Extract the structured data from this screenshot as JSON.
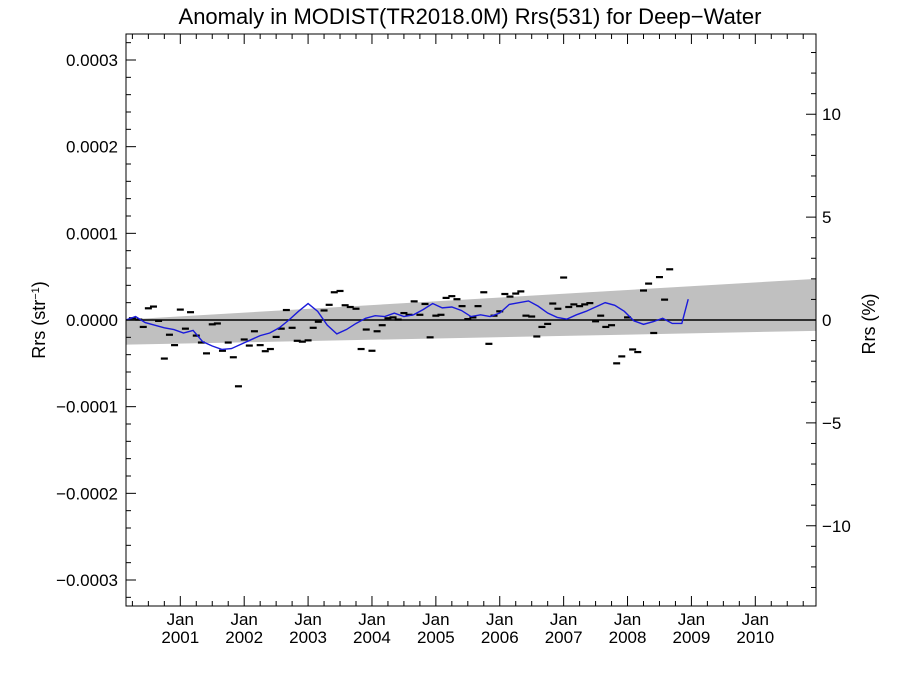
{
  "chart_data": {
    "type": "scatter",
    "title": "Anomaly in MODIST(TR2018.0M) Rrs(531) for Deep−Water",
    "ylabel_left_main": "Rrs (str",
    "ylabel_left_sup": "−1",
    "ylabel_left_close": ")",
    "ylabel_right": "Rrs (%)",
    "xlim": [
      2000.15,
      2010.95
    ],
    "ylim_left": [
      -0.00033,
      0.00033
    ],
    "ylim_right": [
      -13.9,
      13.9
    ],
    "grid": false,
    "x_ticks": [
      {
        "value": 2001.0,
        "top": "Jan",
        "bottom": "2001"
      },
      {
        "value": 2002.0,
        "top": "Jan",
        "bottom": "2002"
      },
      {
        "value": 2003.0,
        "top": "Jan",
        "bottom": "2003"
      },
      {
        "value": 2004.0,
        "top": "Jan",
        "bottom": "2004"
      },
      {
        "value": 2005.0,
        "top": "Jan",
        "bottom": "2005"
      },
      {
        "value": 2006.0,
        "top": "Jan",
        "bottom": "2006"
      },
      {
        "value": 2007.0,
        "top": "Jan",
        "bottom": "2007"
      },
      {
        "value": 2008.0,
        "top": "Jan",
        "bottom": "2008"
      },
      {
        "value": 2009.0,
        "top": "Jan",
        "bottom": "2009"
      },
      {
        "value": 2010.0,
        "top": "Jan",
        "bottom": "2010"
      }
    ],
    "y_ticks_left": [
      {
        "value": 0.0003,
        "label": "0.0003"
      },
      {
        "value": 0.0002,
        "label": "0.0002"
      },
      {
        "value": 0.0001,
        "label": "0.0001"
      },
      {
        "value": 0.0,
        "label": "0.0000"
      },
      {
        "value": -0.0001,
        "label": "−0.0001"
      },
      {
        "value": -0.0002,
        "label": "−0.0002"
      },
      {
        "value": -0.0003,
        "label": "−0.0003"
      }
    ],
    "y_ticks_right": [
      {
        "value": 10,
        "label": "10"
      },
      {
        "value": 5,
        "label": "5"
      },
      {
        "value": 0,
        "label": "0"
      },
      {
        "value": -5,
        "label": "−5"
      },
      {
        "value": -10,
        "label": "−10"
      }
    ],
    "zero_line": 0.0,
    "trend_band": {
      "x": [
        2000.15,
        2010.95
      ],
      "upper": [
        5e-07,
        4.75e-05
      ],
      "lower": [
        -2.85e-05,
        -1.25e-05
      ]
    },
    "points": [
      {
        "x": 2000.25,
        "y": 2e-06
      },
      {
        "x": 2000.35,
        "y": 5e-07
      },
      {
        "x": 2000.42,
        "y": -8e-06
      },
      {
        "x": 2000.5,
        "y": 1.35e-05
      },
      {
        "x": 2000.58,
        "y": 1.55e-05
      },
      {
        "x": 2000.66,
        "y": -1e-06
      },
      {
        "x": 2000.75,
        "y": -4.45e-05
      },
      {
        "x": 2000.83,
        "y": -1.7e-05
      },
      {
        "x": 2000.91,
        "y": -2.9e-05
      },
      {
        "x": 2001.0,
        "y": 1.2e-05
      },
      {
        "x": 2001.08,
        "y": -1e-05
      },
      {
        "x": 2001.16,
        "y": 9e-06
      },
      {
        "x": 2001.25,
        "y": -1.8e-05
      },
      {
        "x": 2001.33,
        "y": -2.6e-05
      },
      {
        "x": 2001.41,
        "y": -3.85e-05
      },
      {
        "x": 2001.5,
        "y": -5e-06
      },
      {
        "x": 2001.58,
        "y": -4e-06
      },
      {
        "x": 2001.66,
        "y": -3.55e-05
      },
      {
        "x": 2001.75,
        "y": -2.6e-05
      },
      {
        "x": 2001.83,
        "y": -4.3e-05
      },
      {
        "x": 2001.91,
        "y": -7.65e-05
      },
      {
        "x": 2002.0,
        "y": -2.25e-05
      },
      {
        "x": 2002.08,
        "y": -2.95e-05
      },
      {
        "x": 2002.16,
        "y": -1.3e-05
      },
      {
        "x": 2002.25,
        "y": -2.9e-05
      },
      {
        "x": 2002.33,
        "y": -3.6e-05
      },
      {
        "x": 2002.41,
        "y": -3.35e-05
      },
      {
        "x": 2002.5,
        "y": -1.95e-05
      },
      {
        "x": 2002.58,
        "y": -1e-05
      },
      {
        "x": 2002.66,
        "y": 1.15e-05
      },
      {
        "x": 2002.75,
        "y": -9e-06
      },
      {
        "x": 2002.83,
        "y": -2.4e-05
      },
      {
        "x": 2002.91,
        "y": -2.5e-05
      },
      {
        "x": 2003.0,
        "y": -2.35e-05
      },
      {
        "x": 2003.08,
        "y": -9e-06
      },
      {
        "x": 2003.16,
        "y": -2e-06
      },
      {
        "x": 2003.25,
        "y": 1.1e-05
      },
      {
        "x": 2003.33,
        "y": 1.75e-05
      },
      {
        "x": 2003.41,
        "y": 3.2e-05
      },
      {
        "x": 2003.5,
        "y": 3.35e-05
      },
      {
        "x": 2003.58,
        "y": 1.7e-05
      },
      {
        "x": 2003.66,
        "y": 1.5e-05
      },
      {
        "x": 2003.75,
        "y": 1.3e-05
      },
      {
        "x": 2003.83,
        "y": -3.35e-05
      },
      {
        "x": 2003.91,
        "y": -1.1e-05
      },
      {
        "x": 2004.0,
        "y": -3.55e-05
      },
      {
        "x": 2004.08,
        "y": -1.3e-05
      },
      {
        "x": 2004.16,
        "y": -6e-06
      },
      {
        "x": 2004.25,
        "y": 2e-06
      },
      {
        "x": 2004.33,
        "y": 3e-06
      },
      {
        "x": 2004.41,
        "y": 5e-07
      },
      {
        "x": 2004.5,
        "y": 8e-06
      },
      {
        "x": 2004.58,
        "y": 6e-06
      },
      {
        "x": 2004.66,
        "y": 2.15e-05
      },
      {
        "x": 2004.75,
        "y": 6e-06
      },
      {
        "x": 2004.83,
        "y": 1.85e-05
      },
      {
        "x": 2004.91,
        "y": -2e-05
      },
      {
        "x": 2005.0,
        "y": 5e-06
      },
      {
        "x": 2005.08,
        "y": 6e-06
      },
      {
        "x": 2005.16,
        "y": 2.55e-05
      },
      {
        "x": 2005.25,
        "y": 2.75e-05
      },
      {
        "x": 2005.33,
        "y": 2.4e-05
      },
      {
        "x": 2005.41,
        "y": 1.6e-05
      },
      {
        "x": 2005.5,
        "y": 1e-06
      },
      {
        "x": 2005.58,
        "y": 3e-06
      },
      {
        "x": 2005.66,
        "y": 1.6e-05
      },
      {
        "x": 2005.75,
        "y": 3.2e-05
      },
      {
        "x": 2005.83,
        "y": -2.75e-05
      },
      {
        "x": 2005.91,
        "y": 5e-06
      },
      {
        "x": 2006.0,
        "y": 1e-05
      },
      {
        "x": 2006.08,
        "y": 3e-05
      },
      {
        "x": 2006.16,
        "y": 2.7e-05
      },
      {
        "x": 2006.25,
        "y": 3.05e-05
      },
      {
        "x": 2006.33,
        "y": 3.3e-05
      },
      {
        "x": 2006.41,
        "y": 5e-06
      },
      {
        "x": 2006.5,
        "y": 4e-06
      },
      {
        "x": 2006.58,
        "y": -1.9e-05
      },
      {
        "x": 2006.66,
        "y": -8e-06
      },
      {
        "x": 2006.75,
        "y": -4.5e-06
      },
      {
        "x": 2006.83,
        "y": 1.9e-05
      },
      {
        "x": 2006.91,
        "y": 1.3e-05
      },
      {
        "x": 2007.0,
        "y": 4.9e-05
      },
      {
        "x": 2007.08,
        "y": 1.5e-05
      },
      {
        "x": 2007.16,
        "y": 1.8e-05
      },
      {
        "x": 2007.25,
        "y": 1.6e-05
      },
      {
        "x": 2007.33,
        "y": 1.8e-05
      },
      {
        "x": 2007.41,
        "y": 1.95e-05
      },
      {
        "x": 2007.5,
        "y": -1.5e-06
      },
      {
        "x": 2007.58,
        "y": 5e-06
      },
      {
        "x": 2007.66,
        "y": -8e-06
      },
      {
        "x": 2007.75,
        "y": -6e-06
      },
      {
        "x": 2007.83,
        "y": -5e-05
      },
      {
        "x": 2007.91,
        "y": -4.2e-05
      },
      {
        "x": 2008.0,
        "y": 3e-06
      },
      {
        "x": 2008.08,
        "y": -3.4e-05
      },
      {
        "x": 2008.16,
        "y": -3.7e-05
      },
      {
        "x": 2008.25,
        "y": 3.4e-05
      },
      {
        "x": 2008.33,
        "y": 4.2e-05
      },
      {
        "x": 2008.41,
        "y": -1.5e-05
      },
      {
        "x": 2008.5,
        "y": 4.95e-05
      },
      {
        "x": 2008.58,
        "y": 2.35e-05
      },
      {
        "x": 2008.66,
        "y": 5.85e-05
      }
    ],
    "running_mean": {
      "x": [
        2000.15,
        2000.3,
        2000.45,
        2000.6,
        2000.75,
        2000.9,
        2001.05,
        2001.2,
        2001.35,
        2001.5,
        2001.65,
        2001.8,
        2001.95,
        2002.1,
        2002.25,
        2002.4,
        2002.55,
        2002.7,
        2002.85,
        2003.0,
        2003.15,
        2003.3,
        2003.45,
        2003.6,
        2003.75,
        2003.9,
        2004.05,
        2004.2,
        2004.35,
        2004.5,
        2004.65,
        2004.8,
        2004.95,
        2005.1,
        2005.25,
        2005.4,
        2005.55,
        2005.7,
        2005.85,
        2006.0,
        2006.15,
        2006.3,
        2006.45,
        2006.6,
        2006.75,
        2006.9,
        2007.05,
        2007.2,
        2007.35,
        2007.5,
        2007.65,
        2007.8,
        2007.95,
        2008.1,
        2008.25,
        2008.4,
        2008.55,
        2008.7,
        2008.85,
        2008.95
      ],
      "y": [
        0.0,
        4e-06,
        -3e-06,
        -6e-06,
        -9e-06,
        -1.1e-05,
        -1.5e-05,
        -1.2e-05,
        -2.5e-05,
        -3e-05,
        -3.4e-05,
        -3.3e-05,
        -2.8e-05,
        -2.3e-05,
        -1.8e-05,
        -1.5e-05,
        -9e-06,
        0.0,
        1e-05,
        1.9e-05,
        1e-05,
        -6e-06,
        -1.6e-05,
        -1.1e-05,
        -4e-06,
        2e-06,
        5e-06,
        4e-06,
        8e-06,
        4e-06,
        6e-06,
        1.2e-05,
        1.9e-05,
        1.4e-05,
        1.5e-05,
        1.1e-05,
        4e-06,
        6e-06,
        4e-06,
        8e-06,
        1.8e-05,
        2e-05,
        2.2e-05,
        1.6e-05,
        8e-06,
        3e-06,
        1e-06,
        6e-06,
        1e-05,
        1.5e-05,
        2e-05,
        1.7e-05,
        1e-05,
        -1e-06,
        -5e-06,
        -2e-06,
        2e-06,
        -4e-06,
        -4e-06,
        2.4e-05
      ]
    },
    "colors": {
      "band": "#c0c0c0",
      "running_mean": "#1a1adb",
      "points": "#000000",
      "zero_line": "#000000",
      "axes": "#000000"
    }
  }
}
